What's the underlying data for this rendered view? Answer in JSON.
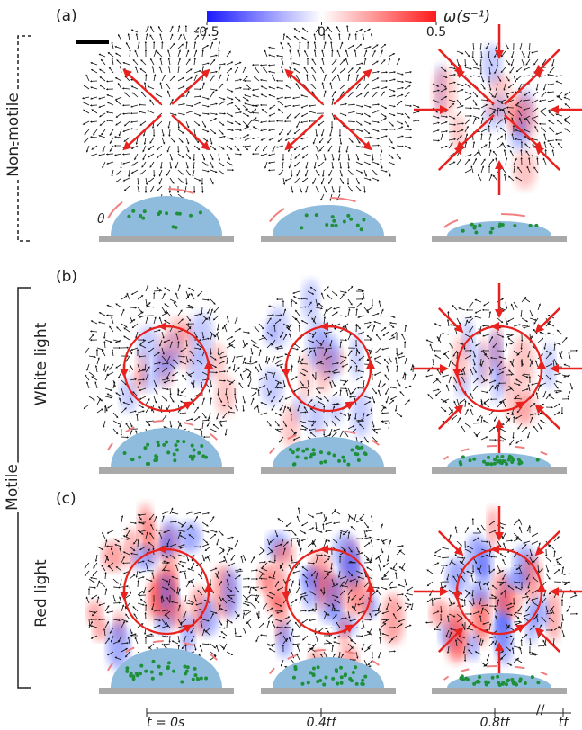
{
  "panels": {
    "a": "(a)",
    "b": "(b)",
    "c": "(c)"
  },
  "colorbar": {
    "label": "ω(s⁻¹)",
    "lim": [
      -0.5,
      0.5
    ],
    "ticks": [
      -0.5,
      0,
      0.5
    ]
  },
  "groups": {
    "non_motile": "Non-motile",
    "motile": "Motile",
    "white_light": "White light",
    "red_light": "Red light"
  },
  "angle_label": "θ",
  "timeline": {
    "labels": [
      "t = 0s",
      "0.4tf",
      "0.8tf",
      "tf"
    ]
  }
}
